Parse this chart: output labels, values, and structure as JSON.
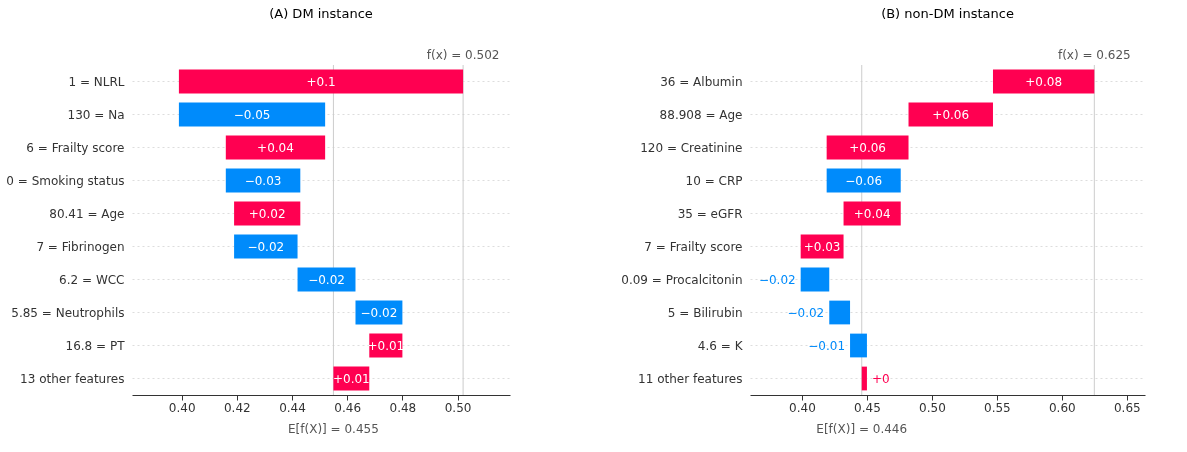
{
  "chart_data": [
    {
      "type": "bar",
      "orientation": "horizontal",
      "title": "(A) DM instance",
      "categories": [
        "1 = NLRL",
        "130 = Na",
        "6 = Frailty score",
        "0 = Smoking status",
        "80.41 = Age",
        "7 = Fibrinogen",
        "6.2 = WCC",
        "5.85 = Neutrophils",
        "16.8 = PT",
        "13 other features"
      ],
      "values": [
        0.103,
        -0.053,
        0.036,
        -0.027,
        0.024,
        -0.023,
        -0.021,
        -0.017,
        0.012,
        0.013
      ],
      "base": [
        0.399,
        0.452,
        0.416,
        0.443,
        0.419,
        0.442,
        0.463,
        0.48,
        0.468,
        0.455
      ],
      "colors": [
        "#ff0051",
        "#008bfb",
        "#ff0051",
        "#008bfb",
        "#ff0051",
        "#008bfb",
        "#008bfb",
        "#008bfb",
        "#ff0051",
        "#ff0051"
      ],
      "value_labels": [
        "+0.1",
        "−0.05",
        "+0.04",
        "−0.03",
        "+0.02",
        "−0.02",
        "−0.02",
        "−0.02",
        "+0.01",
        "+0.01"
      ],
      "xlim": [
        0.382,
        0.519
      ],
      "xticks": [
        {
          "value": 0.4,
          "label": "0.40"
        },
        0.42,
        0.44,
        0.46,
        0.48,
        {
          "value": 0.5,
          "label": "0.50"
        }
      ],
      "ref_lines": [
        {
          "axis": "x",
          "value": 0.502,
          "label": "f(x) = 0.502"
        },
        {
          "axis": "x",
          "value": 0.455,
          "label": "E[f(X)] = 0.455"
        }
      ],
      "grid": "y"
    },
    {
      "type": "bar",
      "orientation": "horizontal",
      "title": "(B) non-DM instance",
      "categories": [
        "36 = Albumin",
        "88.908 = Age",
        "120 = Creatinine",
        "10 = CRP",
        "35 = eGFR",
        "7 = Frailty score",
        "0.09 = Procalcitonin",
        "5 = Bilirubin",
        "4.6 = K",
        "11 other features"
      ],
      "values": [
        0.078,
        0.065,
        0.063,
        -0.057,
        0.044,
        0.033,
        -0.022,
        -0.016,
        -0.013,
        0.004
      ],
      "base": [
        0.547,
        0.482,
        0.419,
        0.476,
        0.432,
        0.399,
        0.421,
        0.437,
        0.45,
        0.446
      ],
      "colors": [
        "#ff0051",
        "#ff0051",
        "#ff0051",
        "#008bfb",
        "#ff0051",
        "#ff0051",
        "#008bfb",
        "#008bfb",
        "#008bfb",
        "#ff0051"
      ],
      "value_labels": [
        "+0.08",
        "+0.06",
        "+0.06",
        "−0.06",
        "+0.04",
        "+0.03",
        "−0.02",
        "−0.02",
        "−0.01",
        "+0"
      ],
      "xlim": [
        0.36,
        0.664
      ],
      "xticks": [
        {
          "value": 0.4,
          "label": "0.40"
        },
        0.45,
        {
          "value": 0.5,
          "label": "0.50"
        },
        0.55,
        {
          "value": 0.6,
          "label": "0.60"
        },
        0.65
      ],
      "ref_lines": [
        {
          "axis": "x",
          "value": 0.625,
          "label": "f(x) = 0.625"
        },
        {
          "axis": "x",
          "value": 0.446,
          "label": "E[f(X)] = 0.446"
        }
      ],
      "grid": "y"
    }
  ]
}
